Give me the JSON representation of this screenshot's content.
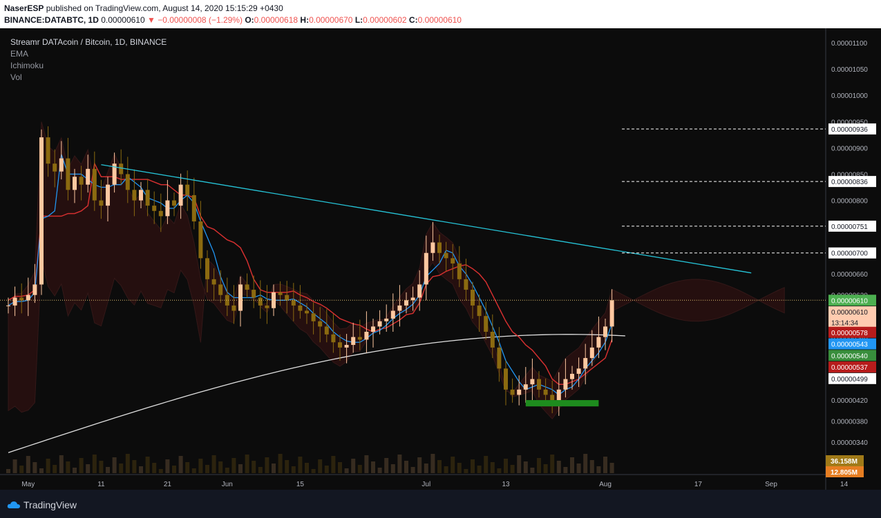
{
  "header": {
    "publisher": "NaserESP",
    "published_text": "published on TradingView.com, August 14, 2020 15:15:29 +0430",
    "symbol": "BINANCE:DATABTC, 1D",
    "last": "0.00000610",
    "change": "▼ −0.00000008 (−1.29%)",
    "o_label": "O:",
    "o_value": "0.00000618",
    "h_label": "H:",
    "h_value": "0.00000670",
    "l_label": "L:",
    "l_value": "0.00000602",
    "c_label": "C:",
    "c_value": "0.00000610"
  },
  "legend": {
    "title": "Streamr DATAcoin / Bitcoin, 1D, BINANCE",
    "items": [
      "EMA",
      "Ichimoku",
      "Vol"
    ]
  },
  "footer": {
    "brand": "TradingView"
  },
  "colors": {
    "background": "#0c0c0c",
    "candle_up": "#ffc8a0",
    "candle_down": "#8b6a10",
    "trendline": "#26c6da",
    "kijun": "#d32f2f",
    "tenkan": "#2196f3",
    "ema200": "#e0e0e0",
    "cloud_green": "#1b3a22",
    "cloud_red": "#3a1212",
    "support_zone": "#1e8c1e"
  },
  "chart_data": {
    "type": "candlestick",
    "title": "Streamr DATAcoin / Bitcoin, 1D, BINANCE",
    "y_axis_labels": [
      "0.00001100",
      "0.00001050",
      "0.00001000",
      "0.00000950",
      "0.00000900",
      "0.00000850",
      "0.00000800",
      "0.00000750",
      "0.00000700",
      "0.00000660",
      "0.00000620",
      "0.00000580",
      "0.00000540",
      "0.00000500",
      "0.00000460",
      "0.00000420",
      "0.00000380",
      "0.00000340"
    ],
    "y_axis_values": [
      1100,
      1050,
      1000,
      950,
      900,
      850,
      800,
      750,
      700,
      660,
      620,
      580,
      540,
      500,
      460,
      420,
      380,
      340
    ],
    "y_unit_note": "values in 1e-8 BTC (satoshi)",
    "x_axis_labels": [
      "May",
      "11",
      "21",
      "Jun",
      "15",
      "Jul",
      "13",
      "Aug",
      "17",
      "Sep",
      "14"
    ],
    "x_axis_day_index": [
      3,
      14,
      24,
      33,
      44,
      63,
      75,
      90,
      104,
      115,
      126
    ],
    "price_markers": [
      {
        "label": "0.00000936",
        "value": 936,
        "color": "#ffffff",
        "text_color": "#131722",
        "dashed": true
      },
      {
        "label": "0.00000836",
        "value": 836,
        "color": "#ffffff",
        "text_color": "#131722",
        "dashed": true
      },
      {
        "label": "0.00000751",
        "value": 751,
        "color": "#ffffff",
        "text_color": "#131722",
        "dashed": true
      },
      {
        "label": "0.00000700",
        "value": 700,
        "color": "#ffffff",
        "text_color": "#131722",
        "dashed": true
      },
      {
        "label": "0.00000610",
        "value": 610,
        "color": "#4caf50",
        "text_color": "#ffffff",
        "dashed": false
      },
      {
        "label": "0.00000610",
        "value": 588,
        "color": "#ffccb0",
        "text_color": "#131722",
        "dashed": false
      },
      {
        "label": "13:14:34",
        "value": 568,
        "color": "#ffccb0",
        "text_color": "#131722",
        "dashed": false
      },
      {
        "label": "0.00000578",
        "value": 549,
        "color": "#b71c1c",
        "text_color": "#ffffff",
        "dashed": false
      },
      {
        "label": "0.00000543",
        "value": 527,
        "color": "#2196f3",
        "text_color": "#ffffff",
        "dashed": false
      },
      {
        "label": "0.00000540",
        "value": 505,
        "color": "#388e3c",
        "text_color": "#ffffff",
        "dashed": false
      },
      {
        "label": "0.00000537",
        "value": 483,
        "color": "#b71c1c",
        "text_color": "#ffffff",
        "dashed": false
      },
      {
        "label": "0.00000499",
        "value": 461,
        "color": "#ffffff",
        "text_color": "#131722",
        "dashed": false
      }
    ],
    "volume_labels": [
      {
        "label": "36.158M",
        "color": "#a07a18",
        "text_color": "#ffffff"
      },
      {
        "label": "12.805M",
        "color": "#e67e22",
        "text_color": "#ffffff"
      }
    ],
    "last_price": 610,
    "trendline": {
      "from": [
        14,
        868
      ],
      "to": [
        112,
        662
      ]
    },
    "support_zone": {
      "from_day": 78,
      "to_day": 89,
      "low": 408,
      "high": 420
    },
    "candles_close": [
      600,
      615,
      610,
      620,
      640,
      920,
      870,
      855,
      880,
      820,
      845,
      830,
      860,
      800,
      790,
      830,
      870,
      850,
      820,
      800,
      820,
      790,
      780,
      770,
      800,
      790,
      830,
      810,
      760,
      690,
      650,
      640,
      620,
      600,
      590,
      640,
      630,
      615,
      600,
      595,
      625,
      620,
      610,
      600,
      590,
      585,
      570,
      560,
      545,
      530,
      520,
      525,
      540,
      535,
      550,
      560,
      570,
      575,
      590,
      600,
      610,
      615,
      640,
      700,
      720,
      700,
      690,
      680,
      650,
      630,
      600,
      580,
      550,
      520,
      480,
      440,
      430,
      440,
      450,
      460,
      440,
      430,
      420,
      440,
      460,
      470,
      480,
      500,
      520,
      540,
      560,
      610
    ],
    "ema200_start": 320,
    "ema200_end": 545,
    "kijun_close_pct": "estimate"
  }
}
